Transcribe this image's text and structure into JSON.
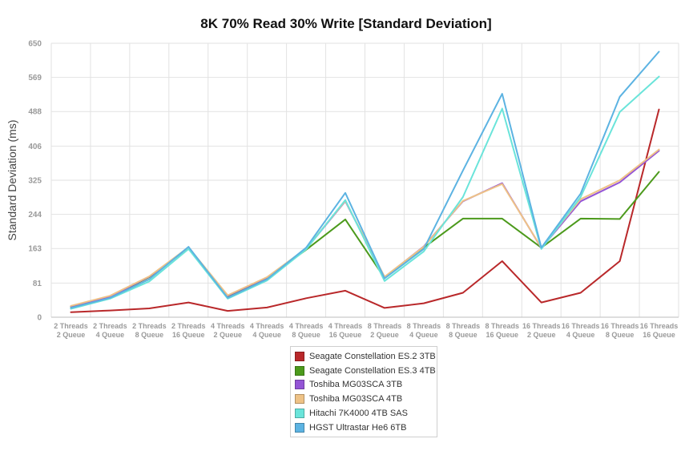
{
  "chart_data": {
    "type": "line",
    "title": "8K 70% Read 30% Write [Standard Deviation]",
    "xlabel": "",
    "ylabel": "Standard Deviation (ms)",
    "ylim": [
      0,
      650
    ],
    "yticks": [
      0,
      81,
      163,
      244,
      325,
      406,
      488,
      569,
      650
    ],
    "grid": true,
    "legend_position": "bottom-center",
    "categories": [
      [
        "2 Threads",
        "2 Queue"
      ],
      [
        "2 Threads",
        "4 Queue"
      ],
      [
        "2 Threads",
        "8 Queue"
      ],
      [
        "2 Threads",
        "16 Queue"
      ],
      [
        "4 Threads",
        "2 Queue"
      ],
      [
        "4 Threads",
        "4 Queue"
      ],
      [
        "4 Threads",
        "8 Queue"
      ],
      [
        "4 Threads",
        "16 Queue"
      ],
      [
        "8 Threads",
        "2 Queue"
      ],
      [
        "8 Threads",
        "4 Queue"
      ],
      [
        "8 Threads",
        "8 Queue"
      ],
      [
        "8 Threads",
        "16 Queue"
      ],
      [
        "16 Threads",
        "2 Queue"
      ],
      [
        "16 Threads",
        "4 Queue"
      ],
      [
        "16 Threads",
        "8 Queue"
      ],
      [
        "16 Threads",
        "16 Queue"
      ]
    ],
    "series": [
      {
        "name": "Seagate Constellation ES.2 3TB",
        "color": "#b9282a",
        "values": [
          12,
          16,
          21,
          35,
          15,
          23,
          45,
          63,
          22,
          33,
          58,
          133,
          35,
          58,
          133,
          493
        ]
      },
      {
        "name": "Seagate Constellation ES.3 4TB",
        "color": "#4c9a1c",
        "values": [
          25,
          48,
          95,
          165,
          50,
          93,
          160,
          232,
          93,
          165,
          234,
          234,
          165,
          234,
          233,
          345
        ]
      },
      {
        "name": "Toshiba MG03SCA 3TB",
        "color": "#9455d6",
        "values": [
          26,
          49,
          96,
          165,
          51,
          94,
          162,
          275,
          95,
          168,
          275,
          318,
          164,
          275,
          320,
          395
        ]
      },
      {
        "name": "Toshiba MG03SCA 4TB",
        "color": "#eec286",
        "values": [
          27,
          51,
          97,
          166,
          52,
          95,
          163,
          276,
          96,
          167,
          276,
          316,
          165,
          280,
          325,
          398
        ]
      },
      {
        "name": "Hitachi 7K4000 4TB SAS",
        "color": "#6ae4da",
        "values": [
          20,
          44,
          85,
          162,
          44,
          87,
          161,
          278,
          86,
          156,
          285,
          495,
          162,
          285,
          487,
          571
        ]
      },
      {
        "name": "HGST Ultrastar He6 6TB",
        "color": "#5cb3e2",
        "values": [
          22,
          46,
          90,
          167,
          46,
          90,
          165,
          295,
          92,
          162,
          348,
          530,
          165,
          293,
          523,
          630
        ]
      }
    ]
  }
}
